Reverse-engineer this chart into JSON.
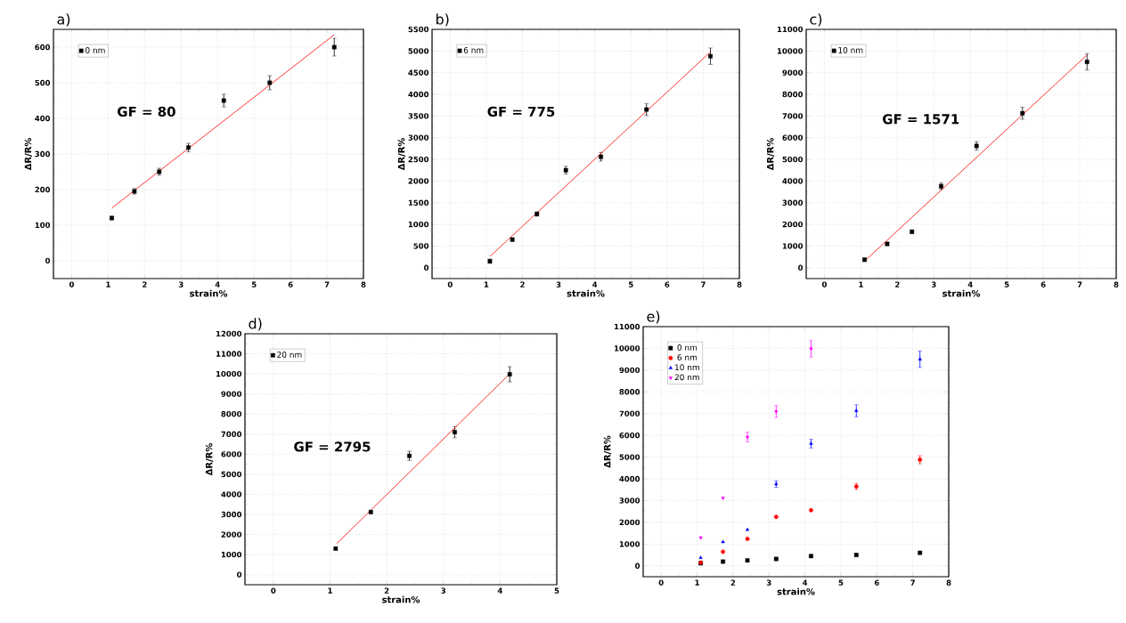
{
  "chart_data": [
    {
      "type": "scatter",
      "xlabel": "strain%",
      "ylabel": "ΔR/R%",
      "annotations": [
        "a)",
        "GF = 80"
      ],
      "xlim": [
        -0.5,
        8
      ],
      "xticks": [
        0,
        1,
        2,
        3,
        4,
        5,
        6,
        7,
        8
      ],
      "ylim": [
        -50,
        650
      ],
      "yticks": [
        0,
        100,
        200,
        300,
        400,
        500,
        600
      ],
      "grid": true,
      "legend": "top left",
      "series": [
        {
          "name": "0 nm",
          "color": "#000000",
          "marker": "square",
          "x": [
            1.1,
            1.72,
            2.4,
            3.2,
            4.17,
            5.43,
            7.2
          ],
          "values": [
            120,
            195,
            250,
            318,
            450,
            500,
            600
          ],
          "errors": [
            5,
            8,
            10,
            12,
            18,
            20,
            25
          ]
        },
        {
          "type": "line",
          "color": "#ff0000",
          "marker": "none",
          "x": [
            1.1,
            7.2
          ],
          "values": [
            148,
            635
          ]
        }
      ]
    },
    {
      "type": "scatter",
      "xlabel": "strain%",
      "ylabel": "ΔR/R%",
      "annotations": [
        "b)",
        "GF = 775"
      ],
      "xlim": [
        -0.5,
        8
      ],
      "xticks": [
        0,
        1,
        2,
        3,
        4,
        5,
        6,
        7,
        8
      ],
      "ylim": [
        -250,
        5500
      ],
      "yticks": [
        0,
        500,
        1000,
        1500,
        2000,
        2500,
        3000,
        3500,
        4000,
        4500,
        5000,
        5500
      ],
      "grid": true,
      "legend": "top left",
      "series": [
        {
          "name": "6 nm",
          "color": "#000000",
          "marker": "square",
          "x": [
            1.1,
            1.72,
            2.4,
            3.2,
            4.17,
            5.43,
            7.2
          ],
          "values": [
            150,
            650,
            1240,
            2250,
            2560,
            3650,
            4880
          ],
          "errors": [
            50,
            40,
            50,
            90,
            100,
            140,
            190
          ]
        },
        {
          "type": "line",
          "color": "#ff0000",
          "marker": "none",
          "x": [
            1.1,
            7.2
          ],
          "values": [
            260,
            4980
          ]
        }
      ]
    },
    {
      "type": "scatter",
      "xlabel": "strain%",
      "ylabel": "ΔR/R%",
      "annotations": [
        "c)",
        "GF = 1571"
      ],
      "xlim": [
        -0.5,
        8
      ],
      "xticks": [
        0,
        1,
        2,
        3,
        4,
        5,
        6,
        7,
        8
      ],
      "ylim": [
        -500,
        11000
      ],
      "yticks": [
        0,
        1000,
        2000,
        3000,
        4000,
        5000,
        6000,
        7000,
        8000,
        9000,
        10000,
        11000
      ],
      "grid": true,
      "legend": "top left",
      "series": [
        {
          "name": "10 nm",
          "color": "#000000",
          "marker": "square",
          "x": [
            1.1,
            1.72,
            2.4,
            3.2,
            4.17,
            5.43,
            7.2
          ],
          "values": [
            370,
            1100,
            1660,
            3760,
            5620,
            7130,
            9500
          ],
          "errors": [
            80,
            70,
            80,
            150,
            200,
            280,
            380
          ]
        },
        {
          "type": "line",
          "color": "#ff0000",
          "marker": "none",
          "x": [
            1.1,
            7.2
          ],
          "values": [
            300,
            9820
          ]
        }
      ]
    },
    {
      "type": "scatter",
      "xlabel": "strain%",
      "ylabel": "ΔR/R%",
      "annotations": [
        "d)",
        "GF = 2795"
      ],
      "xlim": [
        -0.5,
        5
      ],
      "xticks": [
        0,
        1,
        2,
        3,
        4,
        5
      ],
      "ylim": [
        -500,
        12000
      ],
      "yticks": [
        0,
        1000,
        2000,
        3000,
        4000,
        5000,
        6000,
        7000,
        8000,
        9000,
        10000,
        11000,
        12000
      ],
      "grid": true,
      "legend": "top left",
      "series": [
        {
          "name": "20 nm",
          "color": "#000000",
          "marker": "square",
          "x": [
            1.1,
            1.72,
            2.4,
            3.2,
            4.17
          ],
          "values": [
            1300,
            3120,
            5920,
            7100,
            9980
          ],
          "errors": [
            null,
            null,
            230,
            280,
            380
          ]
        },
        {
          "type": "line",
          "color": "#ff0000",
          "marker": "none",
          "x": [
            1.12,
            4.17
          ],
          "values": [
            1550,
            10000
          ]
        }
      ]
    },
    {
      "type": "scatter",
      "xlabel": "strain%",
      "ylabel": "ΔR/R%",
      "annotations": [
        "e)"
      ],
      "xlim": [
        -0.5,
        8
      ],
      "xticks": [
        0,
        1,
        2,
        3,
        4,
        5,
        6,
        7,
        8
      ],
      "ylim": [
        -500,
        11000
      ],
      "yticks": [
        0,
        1000,
        2000,
        3000,
        4000,
        5000,
        6000,
        7000,
        8000,
        9000,
        10000,
        11000
      ],
      "grid": true,
      "legend": "top left",
      "series": [
        {
          "name": "0 nm",
          "color": "#000000",
          "marker": "square",
          "x": [
            1.1,
            1.72,
            2.4,
            3.2,
            4.17,
            5.43,
            7.2
          ],
          "values": [
            120,
            195,
            250,
            318,
            450,
            500,
            600
          ]
        },
        {
          "name": "6 nm",
          "color": "#ff0000",
          "marker": "circle",
          "x": [
            1.1,
            1.72,
            2.4,
            3.2,
            4.17,
            5.43,
            7.2
          ],
          "values": [
            150,
            650,
            1240,
            2250,
            2560,
            3650,
            4880
          ],
          "errors": [
            null,
            null,
            null,
            null,
            null,
            140,
            190
          ]
        },
        {
          "name": "10 nm",
          "color": "#0000ff",
          "marker": "triangle",
          "x": [
            1.1,
            1.72,
            2.4,
            3.2,
            4.17,
            5.43,
            7.2
          ],
          "values": [
            370,
            1100,
            1660,
            3760,
            5620,
            7130,
            9500
          ],
          "errors": [
            null,
            null,
            null,
            150,
            200,
            280,
            380
          ]
        },
        {
          "name": "20 nm",
          "color": "#ff00ff",
          "marker": "triangle_down",
          "x": [
            1.1,
            1.72,
            2.4,
            3.2,
            4.17
          ],
          "values": [
            1300,
            3120,
            5920,
            7100,
            9980
          ],
          "errors": [
            null,
            null,
            230,
            280,
            380
          ]
        }
      ]
    }
  ]
}
